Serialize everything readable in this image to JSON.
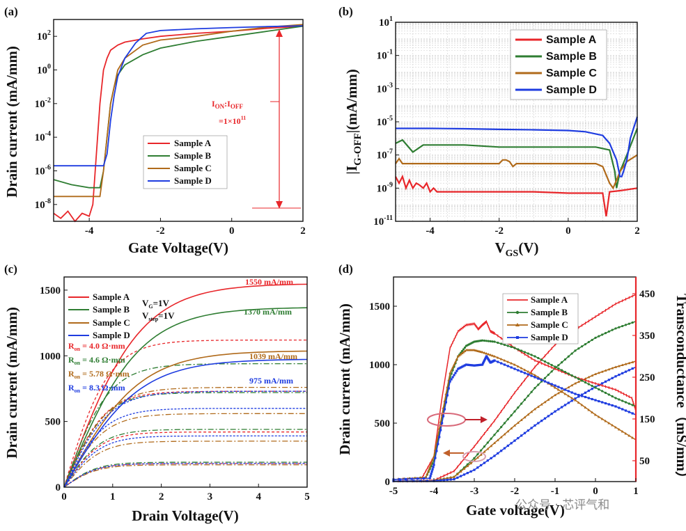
{
  "watermark": "公众号 · 芯评气和",
  "colors": {
    "A": "#e8262a",
    "B": "#2e7d32",
    "C": "#b06a1a",
    "D": "#1e3ce0",
    "annot": "#e8262a"
  },
  "chart_data": [
    {
      "panel": "(a)",
      "type": "line",
      "xlabel": "Gate Voltage(V)",
      "ylabel": "Drain current (mA/mm)",
      "xlim": [
        -5,
        2
      ],
      "ylim": [
        1e-09,
        1000
      ],
      "yscale": "log",
      "xticks": [
        "-4",
        "-2",
        "0",
        "2"
      ],
      "yticks": [
        {
          "base": "10",
          "exp": "2"
        },
        {
          "base": "10",
          "exp": "0"
        },
        {
          "base": "10",
          "exp": "-2"
        },
        {
          "base": "10",
          "exp": "-4"
        },
        {
          "base": "10",
          "exp": "-6"
        },
        {
          "base": "10",
          "exp": "-8"
        }
      ],
      "annotation_ratio": {
        "main": "I",
        "sub1": "ON",
        "sep": ":I",
        "sub2": "OFF"
      },
      "annotation_value": {
        "base": "=1×10",
        "exp": "11"
      },
      "legend": [
        "Sample A",
        "Sample B",
        "Sample C",
        "Sample D"
      ],
      "series": [
        {
          "name": "Sample A",
          "x": [
            -5,
            -4.8,
            -4.6,
            -4.4,
            -4.2,
            -4.0,
            -3.9,
            -3.8,
            -3.7,
            -3.6,
            -3.5,
            -3.4,
            -3.2,
            -3.0,
            -2.5,
            -2,
            -1,
            0,
            1,
            2
          ],
          "y": [
            3e-09,
            1.5e-09,
            4e-09,
            1e-09,
            3e-09,
            2e-09,
            1e-08,
            1e-05,
            0.01,
            1,
            5,
            15,
            30,
            45,
            70,
            100,
            150,
            200,
            300,
            400
          ]
        },
        {
          "name": "Sample B",
          "x": [
            -5,
            -4.5,
            -4.0,
            -3.7,
            -3.6,
            -3.5,
            -3.4,
            -3.3,
            -3.2,
            -3.0,
            -2.5,
            -2,
            -1,
            0,
            1,
            2
          ],
          "y": [
            3e-07,
            1.5e-07,
            1e-07,
            1e-07,
            1e-06,
            0.0001,
            0.01,
            0.1,
            0.5,
            2,
            8,
            20,
            50,
            100,
            200,
            400
          ]
        },
        {
          "name": "Sample C",
          "x": [
            -5,
            -4.0,
            -3.7,
            -3.6,
            -3.5,
            -3.4,
            -3.3,
            -3.2,
            -3.0,
            -2.5,
            -2,
            -1,
            0,
            1,
            2
          ],
          "y": [
            3e-08,
            3e-08,
            3e-08,
            1e-06,
            0.0001,
            0.01,
            0.1,
            1,
            5,
            30,
            60,
            100,
            200,
            350,
            500
          ]
        },
        {
          "name": "Sample D",
          "x": [
            -5,
            -3.6,
            -3.5,
            -3.4,
            -3.3,
            -3.2,
            -3.0,
            -2.7,
            -2.4,
            -2,
            -1,
            0,
            1,
            2
          ],
          "y": [
            2e-06,
            2e-06,
            1e-05,
            0.001,
            0.03,
            0.4,
            5,
            40,
            150,
            220,
            280,
            330,
            380,
            420
          ]
        }
      ]
    },
    {
      "panel": "(b)",
      "type": "line",
      "xlabel": {
        "main": "V",
        "sub": "GS",
        "tail": "(V)"
      },
      "ylabel": {
        "pre": "|I",
        "sub": "G-OFF",
        "post": "|(mA/mm)"
      },
      "xlim": [
        -5,
        2
      ],
      "ylim": [
        1e-11,
        10
      ],
      "yscale": "log",
      "grid": true,
      "xticks": [
        "-4",
        "-2",
        "0",
        "2"
      ],
      "yticks": [
        {
          "base": "10",
          "exp": "1"
        },
        {
          "base": "10",
          "exp": "-1"
        },
        {
          "base": "10",
          "exp": "-3"
        },
        {
          "base": "10",
          "exp": "-5"
        },
        {
          "base": "10",
          "exp": "-7"
        },
        {
          "base": "10",
          "exp": "-9"
        },
        {
          "base": "10",
          "exp": "-11"
        }
      ],
      "legend": [
        "Sample A",
        "Sample B",
        "Sample C",
        "Sample D"
      ],
      "series": [
        {
          "name": "Sample A",
          "x": [
            -5,
            -4.9,
            -4.8,
            -4.7,
            -4.6,
            -4.5,
            -4.4,
            -4.3,
            -4.2,
            -4.1,
            -4.0,
            -3.9,
            -3.8,
            -3.6,
            -3,
            -2,
            -1,
            0,
            0.8,
            1.0,
            1.05,
            1.1,
            1.2,
            1.5,
            2
          ],
          "y": [
            5e-09,
            2e-09,
            5e-09,
            1e-09,
            3e-09,
            1e-09,
            2e-09,
            1.5e-09,
            1e-09,
            2e-09,
            6e-10,
            1e-09,
            6e-10,
            6e-10,
            6e-10,
            6e-10,
            6e-10,
            5e-10,
            5e-10,
            5e-10,
            1e-10,
            2e-11,
            6e-10,
            7e-10,
            1e-09
          ]
        },
        {
          "name": "Sample B",
          "x": [
            -5,
            -4.8,
            -4.5,
            -4.2,
            -4,
            -3,
            -2,
            -1,
            0,
            0.8,
            1.2,
            1.35,
            1.4,
            1.5,
            1.7,
            2
          ],
          "y": [
            5e-07,
            8e-07,
            1.5e-07,
            4e-07,
            4e-07,
            4e-07,
            3e-07,
            3e-07,
            3e-07,
            3e-07,
            2e-07,
            1e-08,
            1e-09,
            1e-08,
            1e-07,
            4e-06
          ]
        },
        {
          "name": "Sample C",
          "x": [
            -5,
            -4.9,
            -4.8,
            -4.5,
            -4,
            -3,
            -2,
            -1.9,
            -1.8,
            -1.7,
            -1.6,
            -1.5,
            -1,
            0,
            0.8,
            1.0,
            1.2,
            1.3,
            1.4,
            1.5,
            1.7,
            2
          ],
          "y": [
            3e-08,
            6e-08,
            3e-08,
            3e-08,
            3e-08,
            3e-08,
            3e-08,
            5e-08,
            5e-08,
            4e-08,
            2e-08,
            3e-08,
            3e-08,
            3e-08,
            3e-08,
            2e-08,
            2e-09,
            1e-09,
            3e-09,
            1e-08,
            4e-08,
            1e-07
          ]
        },
        {
          "name": "Sample D",
          "x": [
            -5,
            -4,
            -3,
            -2,
            -1,
            0,
            0.5,
            1.0,
            1.2,
            1.4,
            1.5,
            1.55,
            1.6,
            1.7,
            1.8,
            2
          ],
          "y": [
            4e-06,
            4e-06,
            3.8e-06,
            3.5e-06,
            3.3e-06,
            3e-06,
            2.5e-06,
            1.5e-06,
            5e-07,
            5e-08,
            5e-09,
            5e-09,
            1e-08,
            5e-08,
            1e-06,
            2e-05
          ]
        }
      ]
    },
    {
      "panel": "(c)",
      "type": "line",
      "xlabel": "Drain Voltage(V)",
      "ylabel": "Drain current (mA/mm)",
      "xlim": [
        0,
        5
      ],
      "ylim": [
        0,
        1600
      ],
      "xticks": [
        "0",
        "1",
        "2",
        "3",
        "4",
        "5"
      ],
      "yticks": [
        "0",
        "500",
        "1000",
        "1500"
      ],
      "conditions": [
        {
          "main": "V",
          "sub": "G",
          "tail": "=1V"
        },
        {
          "main": "V",
          "sub": "step",
          "tail": "=1V"
        }
      ],
      "ron_labels": [
        {
          "main": "R",
          "sub": "on",
          "tail": " = 4.0 Ω·mm",
          "color": "#e8262a"
        },
        {
          "main": "R",
          "sub": "on",
          "tail": " = 4.6 Ω·mm",
          "color": "#2e7d32"
        },
        {
          "main": "R",
          "sub": "on",
          "tail": " = 5.78 Ω·mm",
          "color": "#b06a1a"
        },
        {
          "main": "R",
          "sub": "on",
          "tail": " = 8.3 Ω·mm",
          "color": "#1e3ce0"
        }
      ],
      "current_labels": [
        {
          "text": "1550 mA/mm",
          "color": "#e8262a"
        },
        {
          "text": "1370 mA/mm",
          "color": "#2e7d32"
        },
        {
          "text": "1039 mA/mm",
          "color": "#b06a1a"
        },
        {
          "text": "975 mA/mm",
          "color": "#1e3ce0"
        }
      ],
      "legend": [
        "Sample A",
        "Sample B",
        "Sample C",
        "Sample D"
      ],
      "series": [
        {
          "name": "Sample A",
          "style": "solid",
          "sat": [
            1550,
            1120,
            730,
            420,
            180
          ]
        },
        {
          "name": "Sample B",
          "style": "solid",
          "sat": [
            1370,
            940,
            720,
            440,
            190
          ]
        },
        {
          "name": "Sample C",
          "style": "solid",
          "sat": [
            1039,
            760,
            560,
            350,
            170
          ]
        },
        {
          "name": "Sample D",
          "style": "solid",
          "sat": [
            975,
            730,
            600,
            390,
            180
          ]
        }
      ]
    },
    {
      "panel": "(d)",
      "type": "line",
      "xlabel": "Gate voltage(V)",
      "ylabel": "Drain current (mA/mm)",
      "y2label": "Transconductance（mS/mm）",
      "xlim": [
        -5,
        1
      ],
      "ylim": [
        0,
        1750
      ],
      "y2lim": [
        0,
        490
      ],
      "xticks": [
        "-5",
        "-4",
        "-3",
        "-2",
        "-1",
        "0",
        "1"
      ],
      "yticks": [
        "0",
        "500",
        "1000",
        "1500"
      ],
      "y2ticks": [
        "50",
        "150",
        "250",
        "350",
        "450"
      ],
      "legend": [
        "Sample A",
        "Sample B",
        "Sample C",
        "Sample D"
      ],
      "drain_series": [
        {
          "name": "Sample A",
          "x": [
            -5,
            -4.3,
            -4,
            -3.5,
            -3,
            -2.5,
            -2,
            -1.5,
            -1,
            -0.5,
            0,
            0.5,
            1
          ],
          "y": [
            5,
            5,
            10,
            90,
            300,
            520,
            760,
            980,
            1170,
            1300,
            1410,
            1520,
            1600
          ]
        },
        {
          "name": "Sample B",
          "x": [
            -5,
            -4,
            -3.5,
            -3,
            -2.5,
            -2,
            -1.5,
            -1,
            -0.5,
            0,
            0.5,
            1
          ],
          "y": [
            5,
            8,
            40,
            200,
            400,
            600,
            800,
            970,
            1120,
            1230,
            1310,
            1370
          ]
        },
        {
          "name": "Sample C",
          "x": [
            -5,
            -4,
            -3.5,
            -3,
            -2.5,
            -2,
            -1.5,
            -1,
            -0.5,
            0,
            0.5,
            1
          ],
          "y": [
            5,
            8,
            40,
            180,
            330,
            480,
            620,
            740,
            840,
            920,
            980,
            1030
          ]
        },
        {
          "name": "Sample D",
          "x": [
            -5,
            -4,
            -3.5,
            -3,
            -2.5,
            -2,
            -1.5,
            -1,
            -0.5,
            0,
            0.5,
            1
          ],
          "y": [
            5,
            5,
            20,
            100,
            220,
            350,
            480,
            600,
            710,
            810,
            900,
            980
          ]
        }
      ],
      "gm_series": [
        {
          "name": "Sample A",
          "x": [
            -5,
            -4.3,
            -4,
            -3.8,
            -3.6,
            -3.4,
            -3.2,
            -3.0,
            -2.9,
            -2.8,
            -2.7,
            -2.6,
            -2.5,
            -2,
            -1.5,
            -1,
            -0.5,
            0,
            0.5,
            0.9,
            1
          ],
          "y": [
            5,
            8,
            60,
            200,
            320,
            360,
            375,
            378,
            365,
            375,
            383,
            360,
            355,
            320,
            290,
            270,
            250,
            235,
            220,
            200,
            170
          ]
        },
        {
          "name": "Sample B",
          "x": [
            -5,
            -4.2,
            -4,
            -3.8,
            -3.6,
            -3.4,
            -3.2,
            -3,
            -2.8,
            -2.5,
            -2,
            -1.5,
            -1,
            -0.5,
            0,
            0.5,
            1
          ],
          "y": [
            5,
            10,
            50,
            150,
            250,
            300,
            325,
            335,
            338,
            335,
            320,
            300,
            275,
            250,
            225,
            200,
            180
          ]
        },
        {
          "name": "Sample C",
          "x": [
            -5,
            -4.2,
            -4,
            -3.8,
            -3.6,
            -3.4,
            -3.2,
            -3,
            -2.8,
            -2.5,
            -2,
            -1.5,
            -1,
            -0.5,
            0,
            0.5,
            1
          ],
          "y": [
            5,
            10,
            60,
            160,
            260,
            300,
            315,
            315,
            310,
            300,
            280,
            255,
            225,
            195,
            160,
            130,
            100
          ]
        },
        {
          "name": "Sample D",
          "x": [
            -5,
            -4.1,
            -4,
            -3.8,
            -3.6,
            -3.4,
            -3.2,
            -3,
            -2.8,
            -2.7,
            -2.6,
            -2.5,
            -2,
            -1.5,
            -1,
            -0.5,
            0,
            0.5,
            1
          ],
          "y": [
            5,
            8,
            40,
            140,
            240,
            270,
            280,
            278,
            280,
            300,
            285,
            290,
            270,
            250,
            230,
            210,
            195,
            180,
            160
          ]
        }
      ]
    }
  ]
}
